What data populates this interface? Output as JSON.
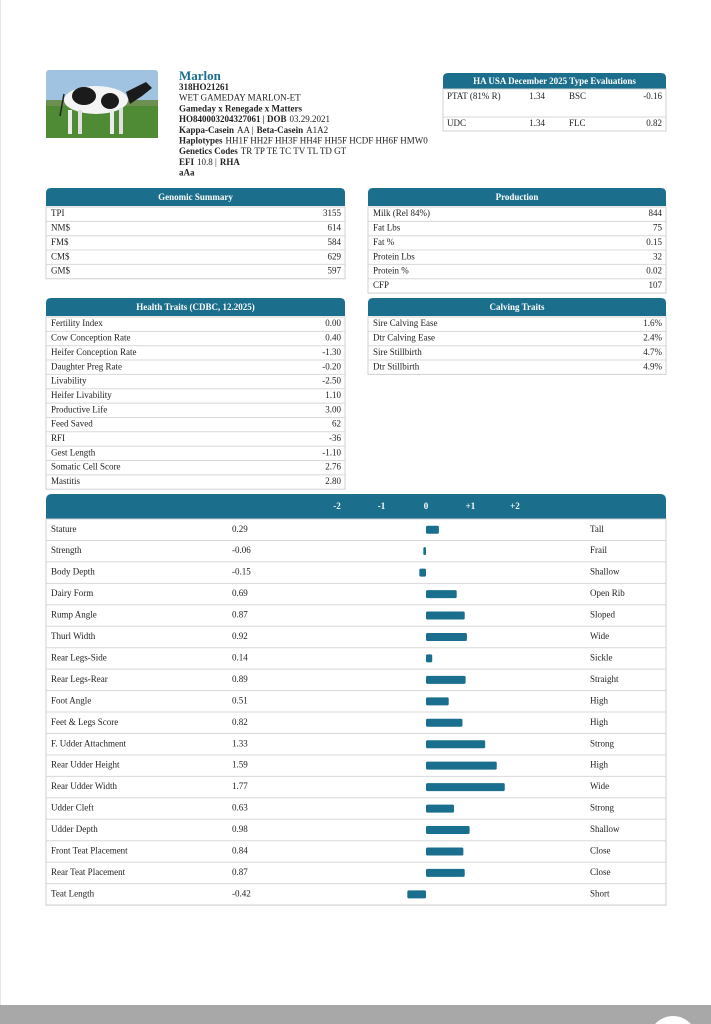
{
  "header": {
    "name": "Marlon",
    "lines": [
      [
        {
          "text": "318HO21261",
          "bold": true
        }
      ],
      [
        {
          "text": "WET GAMEDAY MARLON-ET",
          "bold": false
        }
      ],
      [
        {
          "text": "Gameday x Renegade x Matters",
          "bold": true
        }
      ],
      [
        {
          "text": "HO840003204327061 | DOB",
          "bold": true
        },
        {
          "text": "03.29.2021",
          "bold": false
        }
      ],
      [
        {
          "text": "Kappa-Casein",
          "bold": true
        },
        {
          "text": "AA |",
          "bold": false
        },
        {
          "text": "Beta-Casein",
          "bold": true
        },
        {
          "text": "A1A2",
          "bold": false
        }
      ],
      [
        {
          "text": "Haplotypes",
          "bold": true
        },
        {
          "text": "HH1F HH2F HH3F HH4F HH5F HCDF HH6F HMW0",
          "bold": false
        }
      ],
      [
        {
          "text": "Genetics Codes",
          "bold": true
        },
        {
          "text": "TR TP TE TC TV TL TD GT",
          "bold": false
        }
      ],
      [
        {
          "text": "EFI",
          "bold": true
        },
        {
          "text": "10.8 |",
          "bold": false
        },
        {
          "text": "RHA",
          "bold": true
        }
      ],
      [
        {
          "text": "aAa",
          "bold": true
        }
      ]
    ]
  },
  "type_evaluations": {
    "title": "HA USA December 2025 Type Evaluations",
    "rows": [
      [
        "PTAT (81% R)",
        "1.34",
        "BSC",
        "-0.16"
      ],
      [
        "UDC",
        "1.34",
        "FLC",
        "0.82"
      ]
    ]
  },
  "genomic_summary": {
    "title": "Genomic Summary",
    "rows": [
      [
        "TPI",
        "3155"
      ],
      [
        "NM$",
        "614"
      ],
      [
        "FM$",
        "584"
      ],
      [
        "CM$",
        "629"
      ],
      [
        "GM$",
        "597"
      ]
    ]
  },
  "production": {
    "title": "Production",
    "rows": [
      [
        "Milk (Rel 84%)",
        "844"
      ],
      [
        "Fat Lbs",
        "75"
      ],
      [
        "Fat %",
        "0.15"
      ],
      [
        "Protein Lbs",
        "32"
      ],
      [
        "Protein %",
        "0.02"
      ],
      [
        "CFP",
        "107"
      ]
    ]
  },
  "health_traits": {
    "title": "Health Traits (CDBC, 12.2025)",
    "rows": [
      [
        "Fertility Index",
        "0.00"
      ],
      [
        "Cow Conception Rate",
        "0.40"
      ],
      [
        "Heifer Conception Rate",
        "-1.30"
      ],
      [
        "Daughter Preg Rate",
        "-0.20"
      ],
      [
        "Livability",
        "-2.50"
      ],
      [
        "Heifer Livability",
        "1.10"
      ],
      [
        "Productive Life",
        "3.00"
      ],
      [
        "Feed Saved",
        "62"
      ],
      [
        "RFI",
        "-36"
      ],
      [
        "Gest Length",
        "-1.10"
      ],
      [
        "Somatic Cell Score",
        "2.76"
      ],
      [
        "Mastitis",
        "2.80"
      ]
    ]
  },
  "calving_traits": {
    "title": "Calving Traits",
    "rows": [
      [
        "Sire Calving Ease",
        "1.6%"
      ],
      [
        "Dtr Calving Ease",
        "2.4%"
      ],
      [
        "Sire Stillbirth",
        "4.7%"
      ],
      [
        "Dtr Stillbirth",
        "4.9%"
      ]
    ]
  },
  "linear_traits": {
    "xlim": [
      -2,
      2
    ],
    "xticks": [
      -2,
      -1,
      0,
      {
        "value": 1,
        "label": "+1"
      },
      {
        "value": 2,
        "label": "+2"
      }
    ],
    "color": "#1a6f8f",
    "rows": [
      {
        "trait": "Stature",
        "value": 0.29,
        "descriptor": "Tall"
      },
      {
        "trait": "Strength",
        "value": -0.06,
        "descriptor": "Frail"
      },
      {
        "trait": "Body Depth",
        "value": -0.15,
        "descriptor": "Shallow"
      },
      {
        "trait": "Dairy Form",
        "value": 0.69,
        "descriptor": "Open Rib"
      },
      {
        "trait": "Rump Angle",
        "value": 0.87,
        "descriptor": "Sloped"
      },
      {
        "trait": "Thurl Width",
        "value": 0.92,
        "descriptor": "Wide"
      },
      {
        "trait": "Rear Legs-Side",
        "value": 0.14,
        "descriptor": "Sickle"
      },
      {
        "trait": "Rear Legs-Rear",
        "value": 0.89,
        "descriptor": "Straight"
      },
      {
        "trait": "Foot Angle",
        "value": 0.51,
        "descriptor": "High"
      },
      {
        "trait": "Feet & Legs Score",
        "value": 0.82,
        "descriptor": "High"
      },
      {
        "trait": "F. Udder Attachment",
        "value": 1.33,
        "descriptor": "Strong"
      },
      {
        "trait": "Rear Udder Height",
        "value": 1.59,
        "descriptor": "High"
      },
      {
        "trait": "Rear Udder Width",
        "value": 1.77,
        "descriptor": "Wide"
      },
      {
        "trait": "Udder Cleft",
        "value": 0.63,
        "descriptor": "Strong"
      },
      {
        "trait": "Udder Depth",
        "value": 0.98,
        "descriptor": "Shallow"
      },
      {
        "trait": "Front Teat Placement",
        "value": 0.84,
        "descriptor": "Close"
      },
      {
        "trait": "Rear Teat Placement",
        "value": 0.87,
        "descriptor": "Close"
      },
      {
        "trait": "Teat Length",
        "value": -0.42,
        "descriptor": "Short"
      }
    ]
  }
}
